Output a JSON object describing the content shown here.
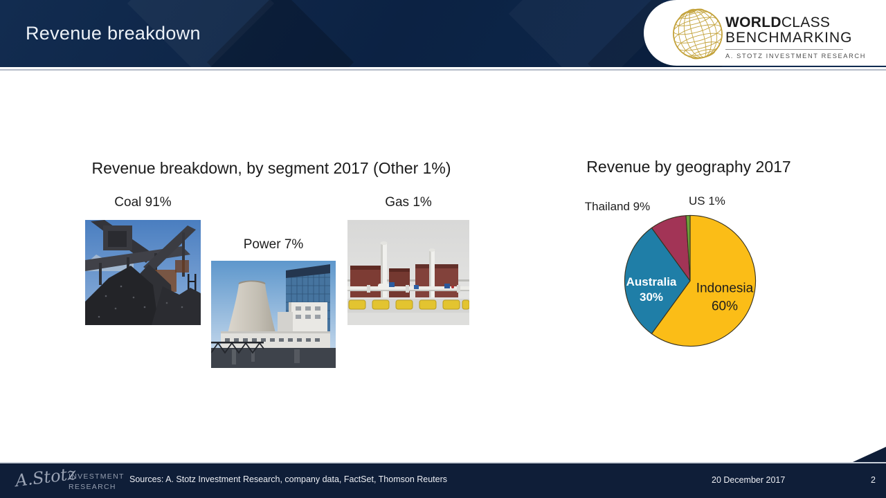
{
  "header": {
    "title": "Revenue breakdown",
    "logo": {
      "line1_strong": "WORLD",
      "line1_light": "CLASS",
      "line2": "BENCHMARKING",
      "line3": "A. STOTZ INVESTMENT RESEARCH",
      "globe_icon": "gold-wireframe-globe",
      "gold_color": "#C3A23B"
    },
    "bg_color": "#0D2A50"
  },
  "segments_panel": {
    "title": "Revenue breakdown, by segment 2017 (Other 1%)",
    "items": [
      {
        "label": "Coal 91%",
        "name": "Coal",
        "value_pct": 91,
        "photo": "coal-stockpile-with-conveyor"
      },
      {
        "label": "Power 7%",
        "name": "Power",
        "value_pct": 7,
        "photo": "power-plant-cooling-tower"
      },
      {
        "label": "Gas 1%",
        "name": "Gas",
        "value_pct": 1,
        "photo": "gas-processing-facility"
      }
    ]
  },
  "geography_panel": {
    "title": "Revenue by geography 2017"
  },
  "chart_data": [
    {
      "type": "pie",
      "title": "Revenue by geography 2017",
      "labels": [
        "Indonesia",
        "Australia",
        "Thailand",
        "US"
      ],
      "values": [
        60,
        30,
        9,
        1
      ],
      "colors": [
        "#FBBD17",
        "#1F7EA7",
        "#A23456",
        "#6CA339"
      ],
      "outline_color": "#38321F",
      "start_angle": "12 o'clock",
      "direction": "clockwise",
      "label_placement": {
        "Indonesia": "inside",
        "Australia": "inside",
        "Thailand": "outside",
        "US": "outside"
      }
    },
    {
      "type": "pictorial",
      "title": "Revenue breakdown, by segment 2017 (Other 1%)",
      "categories": [
        "Coal",
        "Power",
        "Gas",
        "Other"
      ],
      "values": [
        91,
        7,
        1,
        1
      ],
      "unit": "%"
    }
  ],
  "footer": {
    "signature": "A.Stotz",
    "brand_line1": "INVESTMENT",
    "brand_line2": "RESEARCH",
    "sources": "Sources: A. Stotz Investment Research, company data, FactSet, Thomson Reuters",
    "date": "20 December 2017",
    "page_number": "2",
    "bg_color": "#0F1E38"
  }
}
